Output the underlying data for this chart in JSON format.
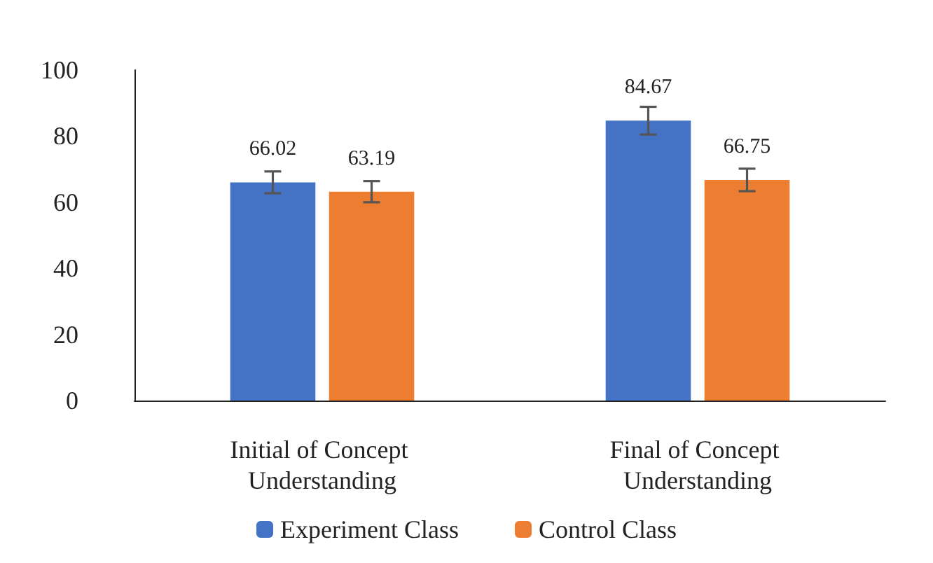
{
  "chart_data": {
    "type": "bar",
    "categories": [
      "Initial of Concept Understanding",
      "Final of Concept Understanding"
    ],
    "series": [
      {
        "name": "Experiment Class",
        "color": "#4472c4",
        "values": [
          66.02,
          84.67
        ],
        "errors": [
          3.3,
          4.2
        ]
      },
      {
        "name": "Control Class",
        "color": "#ed7d31",
        "values": [
          63.19,
          66.75
        ],
        "errors": [
          3.2,
          3.4
        ]
      }
    ],
    "ylim": [
      0,
      100
    ],
    "yticks": [
      0,
      20,
      40,
      60,
      80,
      100
    ],
    "grid": false,
    "legend": "bottom",
    "data_labels": true
  }
}
